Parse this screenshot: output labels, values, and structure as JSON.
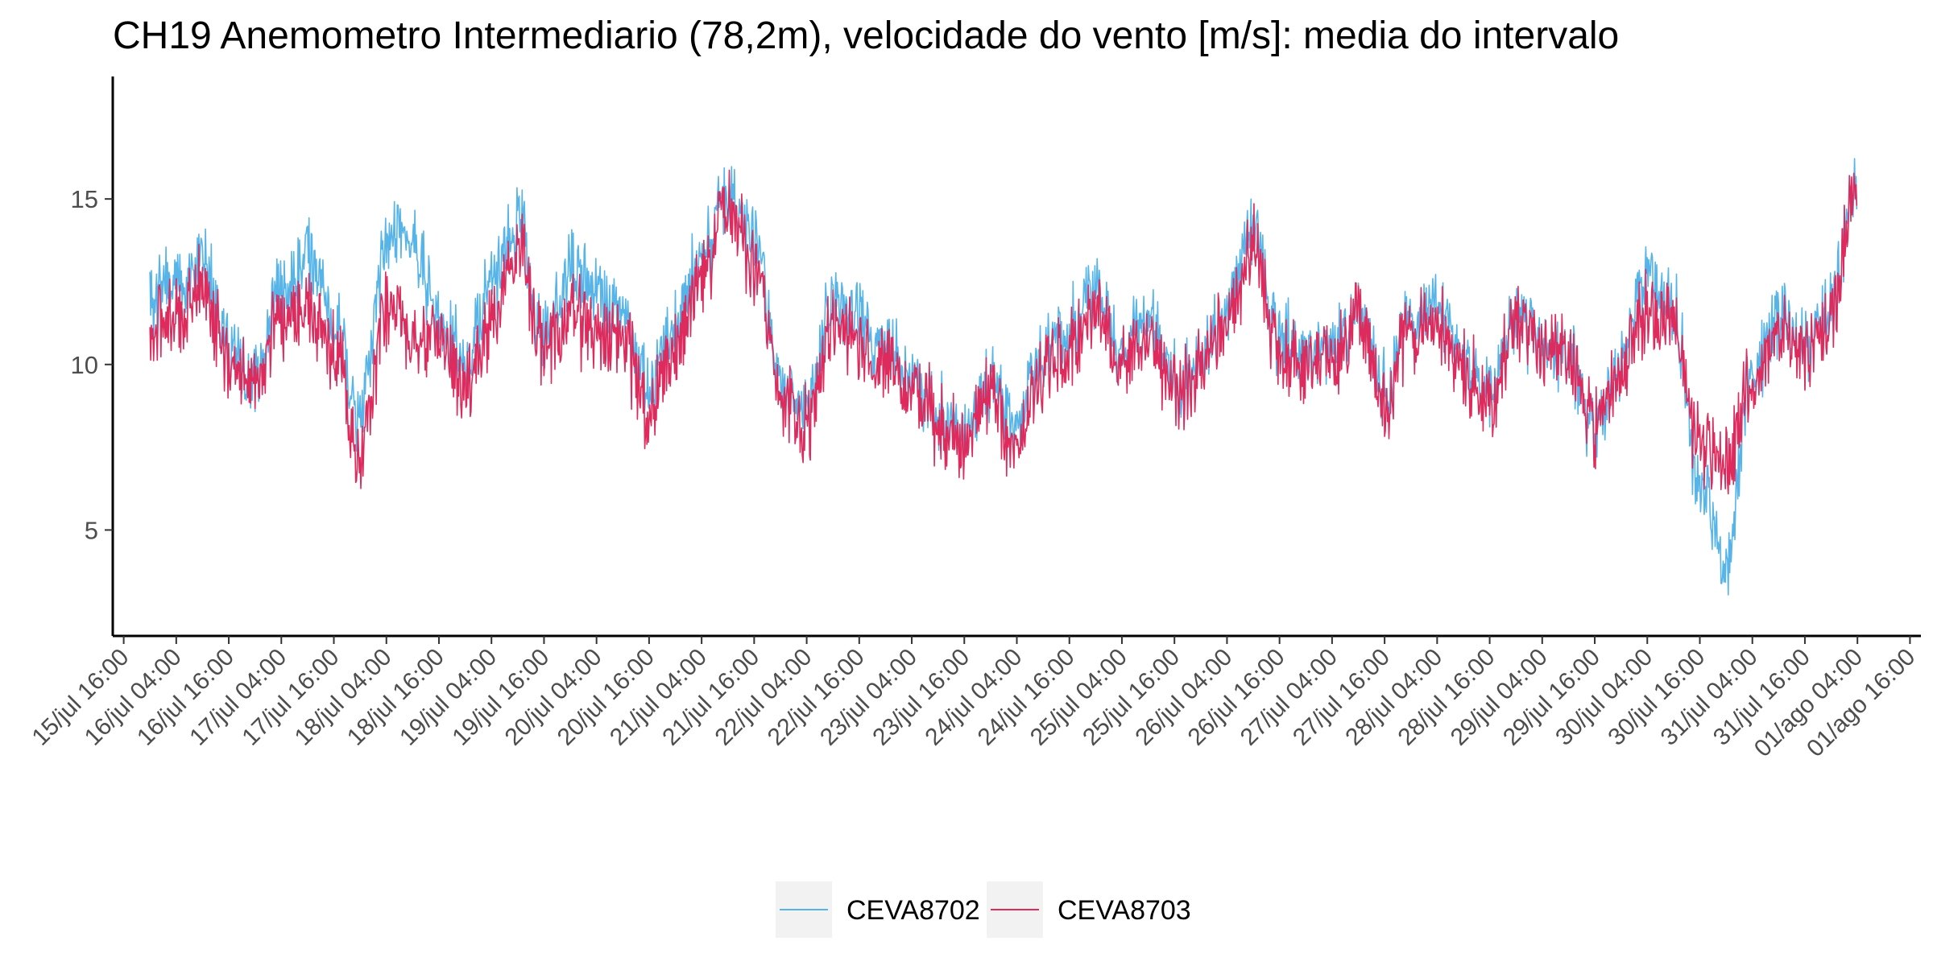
{
  "chart_data": {
    "type": "line",
    "title": "CH19 Anemometro Intermediario (78,2m), velocidade do vento [m/s]: media do intervalo",
    "xlabel": "",
    "ylabel": "",
    "ylim": [
      1.8,
      18.7
    ],
    "yticks": [
      5,
      10,
      15
    ],
    "x_axis": {
      "start": "15/jul 16:00",
      "step_hours": 12,
      "tick_labels": [
        "15/jul 16:00",
        "16/jul 04:00",
        "16/jul 16:00",
        "17/jul 04:00",
        "17/jul 16:00",
        "18/jul 04:00",
        "18/jul 16:00",
        "19/jul 04:00",
        "19/jul 16:00",
        "20/jul 04:00",
        "20/jul 16:00",
        "21/jul 04:00",
        "21/jul 16:00",
        "22/jul 04:00",
        "22/jul 16:00",
        "23/jul 04:00",
        "23/jul 16:00",
        "24/jul 04:00",
        "24/jul 16:00",
        "25/jul 04:00",
        "25/jul 16:00",
        "26/jul 04:00",
        "26/jul 16:00",
        "27/jul 04:00",
        "27/jul 16:00",
        "28/jul 04:00",
        "28/jul 16:00",
        "29/jul 04:00",
        "29/jul 16:00",
        "30/jul 04:00",
        "30/jul 16:00",
        "31/jul 04:00",
        "31/jul 16:00",
        "01/ago 04:00",
        "01/ago 16:00"
      ],
      "range_labels": [
        "15/jul 16:00",
        "01/ago 16:00"
      ]
    },
    "grid": false,
    "legend_position": "bottom",
    "series": [
      {
        "name": "CEVA8702",
        "color": "#56B4E9",
        "x": [
          "15/jul 22:00",
          "16/jul 04:00",
          "16/jul 10:00",
          "16/jul 16:00",
          "16/jul 22:00",
          "17/jul 04:00",
          "17/jul 10:00",
          "17/jul 16:00",
          "17/jul 22:00",
          "18/jul 04:00",
          "18/jul 10:00",
          "18/jul 16:00",
          "18/jul 22:00",
          "19/jul 04:00",
          "19/jul 10:00",
          "19/jul 16:00",
          "19/jul 22:00",
          "20/jul 04:00",
          "20/jul 10:00",
          "20/jul 16:00",
          "20/jul 22:00",
          "21/jul 04:00",
          "21/jul 10:00",
          "21/jul 16:00",
          "21/jul 22:00",
          "22/jul 04:00",
          "22/jul 10:00",
          "22/jul 16:00",
          "22/jul 22:00",
          "23/jul 04:00",
          "23/jul 10:00",
          "23/jul 16:00",
          "23/jul 22:00",
          "24/jul 04:00",
          "24/jul 10:00",
          "24/jul 16:00",
          "24/jul 22:00",
          "25/jul 04:00",
          "25/jul 10:00",
          "25/jul 16:00",
          "25/jul 22:00",
          "26/jul 04:00",
          "26/jul 10:00",
          "26/jul 16:00",
          "26/jul 22:00",
          "27/jul 04:00",
          "27/jul 10:00",
          "27/jul 16:00",
          "27/jul 22:00",
          "28/jul 04:00",
          "28/jul 10:00",
          "28/jul 16:00",
          "28/jul 22:00",
          "29/jul 04:00",
          "29/jul 10:00",
          "29/jul 16:00",
          "29/jul 22:00",
          "30/jul 04:00",
          "30/jul 10:00",
          "30/jul 16:00",
          "30/jul 22:00",
          "31/jul 04:00",
          "31/jul 10:00",
          "31/jul 16:00",
          "31/jul 22:00",
          "01/ago 04:00"
        ],
        "values": [
          12,
          12.4,
          13.2,
          10.6,
          9.5,
          12.2,
          13.4,
          11.2,
          8.4,
          13.6,
          13.9,
          11.2,
          10.2,
          12.5,
          14.3,
          10.7,
          12.9,
          12.1,
          11.3,
          9.4,
          11.1,
          13.2,
          15.3,
          13.6,
          9.4,
          8.6,
          11.9,
          11.4,
          10.4,
          9.8,
          8.5,
          8.1,
          9.5,
          8.2,
          10.3,
          11.1,
          12.3,
          10.5,
          11.4,
          9.4,
          10.1,
          11.8,
          14.1,
          10.8,
          10.2,
          10.5,
          11.4,
          9.3,
          11.2,
          11.8,
          10.2,
          9.3,
          11.4,
          10.5,
          10.2,
          7.9,
          10.2,
          12.8,
          11.6,
          6.3,
          3.9,
          9.8,
          11.4,
          10.4,
          11.9,
          15.5
        ]
      },
      {
        "name": "CEVA8703",
        "color": "#DC2B5C",
        "x": [
          "15/jul 22:00",
          "16/jul 04:00",
          "16/jul 10:00",
          "16/jul 16:00",
          "16/jul 22:00",
          "17/jul 04:00",
          "17/jul 10:00",
          "17/jul 16:00",
          "17/jul 22:00",
          "18/jul 04:00",
          "18/jul 10:00",
          "18/jul 16:00",
          "18/jul 22:00",
          "19/jul 04:00",
          "19/jul 10:00",
          "19/jul 16:00",
          "19/jul 22:00",
          "20/jul 04:00",
          "20/jul 10:00",
          "20/jul 16:00",
          "20/jul 22:00",
          "21/jul 04:00",
          "21/jul 10:00",
          "21/jul 16:00",
          "21/jul 22:00",
          "22/jul 04:00",
          "22/jul 10:00",
          "22/jul 16:00",
          "22/jul 22:00",
          "23/jul 04:00",
          "23/jul 10:00",
          "23/jul 16:00",
          "23/jul 22:00",
          "24/jul 04:00",
          "24/jul 10:00",
          "24/jul 16:00",
          "24/jul 22:00",
          "25/jul 04:00",
          "25/jul 10:00",
          "25/jul 16:00",
          "25/jul 22:00",
          "26/jul 04:00",
          "26/jul 10:00",
          "26/jul 16:00",
          "26/jul 22:00",
          "27/jul 04:00",
          "27/jul 10:00",
          "27/jul 16:00",
          "27/jul 22:00",
          "28/jul 04:00",
          "28/jul 10:00",
          "28/jul 16:00",
          "28/jul 22:00",
          "29/jul 04:00",
          "29/jul 10:00",
          "29/jul 16:00",
          "29/jul 22:00",
          "30/jul 04:00",
          "30/jul 10:00",
          "30/jul 16:00",
          "30/jul 22:00",
          "31/jul 04:00",
          "31/jul 10:00",
          "31/jul 16:00",
          "31/jul 22:00",
          "01/ago 04:00"
        ],
        "values": [
          11,
          11.4,
          12.4,
          10.1,
          9.4,
          11.4,
          11.8,
          10.5,
          7.2,
          11.6,
          10.8,
          10.7,
          9.5,
          11.2,
          13.6,
          10.4,
          11.6,
          10.7,
          10.6,
          8.6,
          10.4,
          12.6,
          14.9,
          12.8,
          8.9,
          8.1,
          11.2,
          10.6,
          9.8,
          9.5,
          8.3,
          7.8,
          9.2,
          7.3,
          9.8,
          10.4,
          11.6,
          10.1,
          10.7,
          9.1,
          9.9,
          11.4,
          13.5,
          10.4,
          9.8,
          10.2,
          11.3,
          8.9,
          10.9,
          11.3,
          9.8,
          8.9,
          11.1,
          10.3,
          10.1,
          8.1,
          9.8,
          11.6,
          11.2,
          7.4,
          6.9,
          9.4,
          11.1,
          10.3,
          11.5,
          15.6
        ]
      }
    ]
  }
}
